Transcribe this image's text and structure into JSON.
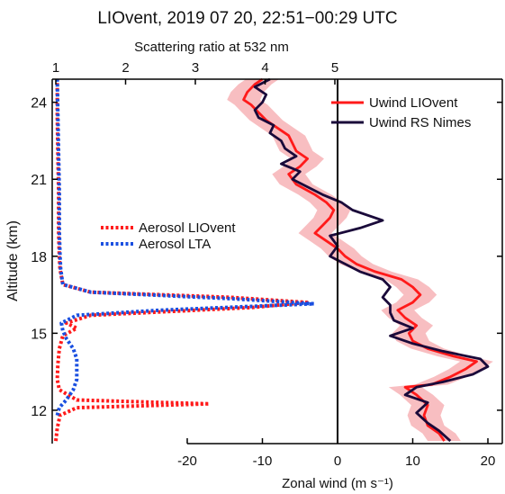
{
  "chart_data": {
    "type": "line",
    "title": "LIOvent, 2019 07 20, 22:51−00:29 UTC",
    "top_axis": {
      "label": "Scattering ratio at 532 nm",
      "ticks": [
        1,
        2,
        3,
        4,
        5
      ],
      "range": [
        1,
        5
      ]
    },
    "bottom_axis": {
      "label": "Zonal wind (m s⁻¹)",
      "ticks": [
        -20,
        -10,
        0,
        10,
        20
      ],
      "range": [
        -20,
        20
      ]
    },
    "y_axis": {
      "label": "Altitude (km)",
      "ticks": [
        12,
        15,
        18,
        21,
        24
      ],
      "range": [
        10.7,
        24.9
      ]
    },
    "zero_wind_line": 0,
    "series": [
      {
        "name": "Uwind LIOvent",
        "axis": "bottom",
        "color": "#ff1a1a",
        "style": "solid",
        "points": [
          [
            14.2,
            10.8
          ],
          [
            13.5,
            11.1
          ],
          [
            12.0,
            11.4
          ],
          [
            11.5,
            11.8
          ],
          [
            12.0,
            12.2
          ],
          [
            10.5,
            12.6
          ],
          [
            9.0,
            12.9
          ],
          [
            12.5,
            13.0
          ],
          [
            15.0,
            13.3
          ],
          [
            17.0,
            13.6
          ],
          [
            18.5,
            13.9
          ],
          [
            15.5,
            14.1
          ],
          [
            12.0,
            14.4
          ],
          [
            10.0,
            14.7
          ],
          [
            9.5,
            15.0
          ],
          [
            10.5,
            15.3
          ],
          [
            9.0,
            15.6
          ],
          [
            8.0,
            15.9
          ],
          [
            10.0,
            16.2
          ],
          [
            11.0,
            16.5
          ],
          [
            10.0,
            16.8
          ],
          [
            8.5,
            17.1
          ],
          [
            5.0,
            17.4
          ],
          [
            2.5,
            17.7
          ],
          [
            1.0,
            18.0
          ],
          [
            0.0,
            18.3
          ],
          [
            -1.5,
            18.6
          ],
          [
            -3.0,
            18.9
          ],
          [
            -2.0,
            19.2
          ],
          [
            -1.0,
            19.5
          ],
          [
            -0.5,
            19.8
          ],
          [
            -1.5,
            20.1
          ],
          [
            -3.0,
            20.4
          ],
          [
            -5.5,
            20.8
          ],
          [
            -6.5,
            21.2
          ],
          [
            -5.0,
            21.5
          ],
          [
            -4.0,
            21.8
          ],
          [
            -5.5,
            22.1
          ],
          [
            -6.0,
            22.4
          ],
          [
            -6.5,
            22.7
          ],
          [
            -8.0,
            23.0
          ],
          [
            -9.5,
            23.3
          ],
          [
            -10.5,
            23.6
          ],
          [
            -11.5,
            23.9
          ],
          [
            -12.5,
            24.1
          ],
          [
            -12.0,
            24.4
          ],
          [
            -11.0,
            24.7
          ],
          [
            -10.0,
            24.9
          ]
        ]
      },
      {
        "name": "Uwind RS Nimes",
        "axis": "bottom",
        "color": "#1a0a3a",
        "style": "solid",
        "points": [
          [
            15.0,
            10.8
          ],
          [
            13.5,
            11.2
          ],
          [
            12.0,
            11.5
          ],
          [
            10.5,
            11.9
          ],
          [
            12.0,
            12.3
          ],
          [
            9.0,
            12.6
          ],
          [
            10.5,
            12.9
          ],
          [
            14.0,
            13.1
          ],
          [
            18.0,
            13.4
          ],
          [
            20.0,
            13.7
          ],
          [
            19.0,
            14.0
          ],
          [
            14.0,
            14.3
          ],
          [
            10.0,
            14.6
          ],
          [
            7.0,
            14.9
          ],
          [
            10.0,
            15.2
          ],
          [
            7.5,
            15.5
          ],
          [
            7.0,
            15.8
          ],
          [
            7.0,
            16.1
          ],
          [
            6.0,
            16.4
          ],
          [
            7.0,
            16.8
          ],
          [
            6.0,
            17.1
          ],
          [
            3.0,
            17.4
          ],
          [
            1.0,
            17.7
          ],
          [
            -1.0,
            18.0
          ],
          [
            0.0,
            18.4
          ],
          [
            -1.0,
            18.8
          ],
          [
            3.0,
            19.1
          ],
          [
            6.0,
            19.4
          ],
          [
            2.0,
            19.8
          ],
          [
            0.5,
            20.1
          ],
          [
            -2.0,
            20.4
          ],
          [
            -4.0,
            20.7
          ],
          [
            -6.0,
            21.0
          ],
          [
            -5.0,
            21.3
          ],
          [
            -7.5,
            21.6
          ],
          [
            -5.5,
            21.9
          ],
          [
            -7.0,
            22.2
          ],
          [
            -7.5,
            22.5
          ],
          [
            -9.0,
            22.8
          ],
          [
            -8.5,
            23.1
          ],
          [
            -10.5,
            23.4
          ],
          [
            -11.0,
            23.7
          ],
          [
            -10.0,
            24.0
          ],
          [
            -9.5,
            24.3
          ],
          [
            -11.0,
            24.6
          ],
          [
            -9.0,
            24.9
          ]
        ]
      },
      {
        "name": "Aerosol LIOvent",
        "axis": "top",
        "color": "#ff1a1a",
        "style": "dotted",
        "points": [
          [
            1.0,
            10.8
          ],
          [
            1.02,
            11.3
          ],
          [
            1.06,
            11.8
          ],
          [
            1.3,
            12.1
          ],
          [
            3.2,
            12.25
          ],
          [
            1.3,
            12.4
          ],
          [
            1.05,
            12.8
          ],
          [
            1.02,
            13.2
          ],
          [
            1.03,
            13.8
          ],
          [
            1.05,
            14.4
          ],
          [
            1.1,
            14.9
          ],
          [
            1.3,
            15.2
          ],
          [
            1.15,
            15.4
          ],
          [
            1.5,
            15.7
          ],
          [
            3.8,
            16.0
          ],
          [
            4.6,
            16.2
          ],
          [
            3.5,
            16.4
          ],
          [
            1.5,
            16.6
          ],
          [
            1.1,
            16.9
          ],
          [
            1.06,
            17.5
          ],
          [
            1.05,
            18.0
          ],
          [
            1.04,
            19.0
          ],
          [
            1.04,
            20.5
          ],
          [
            1.03,
            22.0
          ],
          [
            1.02,
            23.5
          ],
          [
            1.02,
            24.9
          ]
        ]
      },
      {
        "name": "Aerosol LTA",
        "axis": "top",
        "color": "#1a4fe0",
        "style": "dotted",
        "points": [
          [
            1.02,
            11.8
          ],
          [
            1.05,
            12.1
          ],
          [
            1.15,
            12.4
          ],
          [
            1.25,
            12.8
          ],
          [
            1.3,
            13.2
          ],
          [
            1.3,
            13.6
          ],
          [
            1.3,
            14.0
          ],
          [
            1.25,
            14.4
          ],
          [
            1.15,
            14.8
          ],
          [
            1.1,
            15.1
          ],
          [
            1.08,
            15.4
          ],
          [
            1.3,
            15.7
          ],
          [
            2.5,
            15.9
          ],
          [
            4.7,
            16.15
          ],
          [
            3.5,
            16.35
          ],
          [
            1.5,
            16.6
          ],
          [
            1.1,
            16.9
          ],
          [
            1.07,
            17.5
          ],
          [
            1.06,
            18.0
          ],
          [
            1.05,
            19.0
          ],
          [
            1.05,
            20.5
          ],
          [
            1.04,
            22.0
          ],
          [
            1.03,
            23.5
          ],
          [
            1.02,
            24.9
          ]
        ]
      }
    ],
    "legends": [
      {
        "entries": [
          "Uwind LIOvent",
          "Uwind RS Nimes"
        ],
        "placement": "top-right"
      },
      {
        "entries": [
          "Aerosol LIOvent",
          "Aerosol LTA"
        ],
        "placement": "middle-left"
      }
    ],
    "grid": false
  }
}
